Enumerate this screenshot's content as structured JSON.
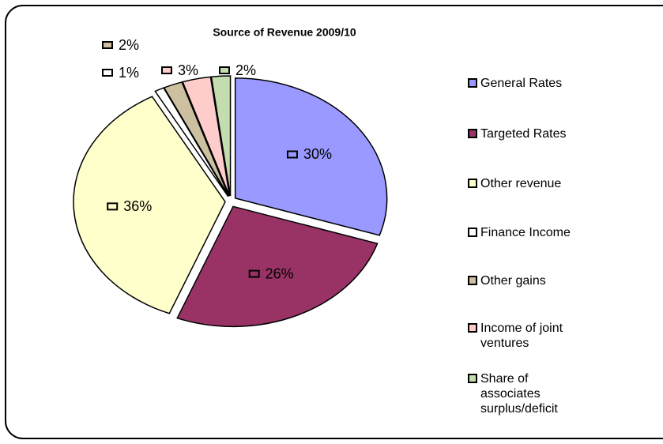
{
  "chart_data": {
    "type": "pie",
    "title": "Source of Revenue 2009/10",
    "categories": [
      "General Rates",
      "Targeted Rates",
      "Other revenue",
      "Finance Income",
      "Other gains",
      "Income of joint ventures",
      "Share of associates surplus/deficit"
    ],
    "values": [
      30,
      26,
      36,
      1,
      2,
      3,
      2
    ],
    "value_labels": [
      "30%",
      "26%",
      "36%",
      "1%",
      "2%",
      "3%",
      "2%"
    ],
    "colors": [
      "#9999ff",
      "#993366",
      "#ffffcc",
      "#ffffff",
      "#ccc0a0",
      "#ffcccc",
      "#c4dcae"
    ],
    "legend": "right"
  }
}
